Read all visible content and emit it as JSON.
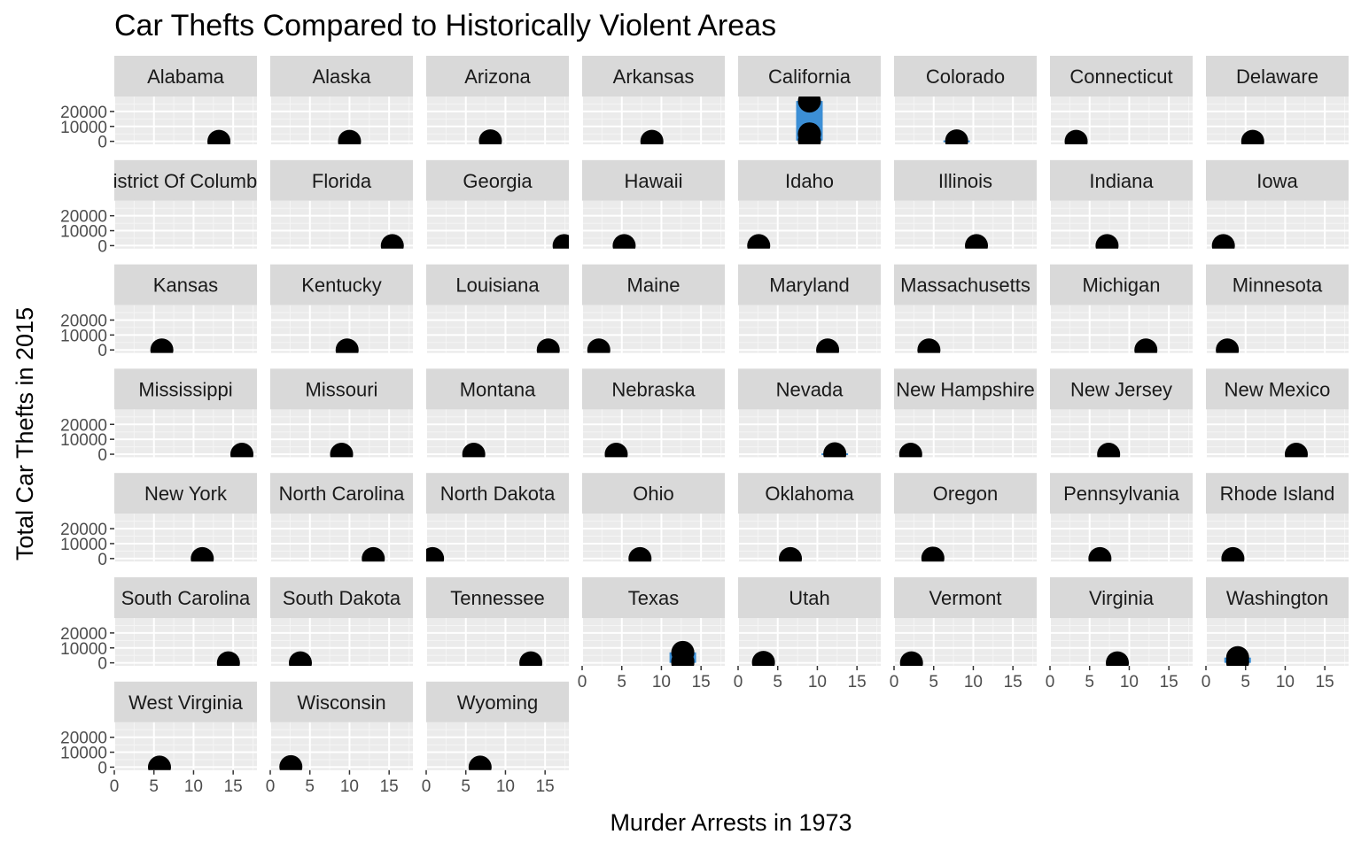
{
  "chart_data": {
    "type": "scatter",
    "title": "Car Thefts Compared to Historically Violent Areas",
    "xlabel": "Murder Arrests in 1973",
    "ylabel": "Total Car Thefts in 2015",
    "xlim": [
      0,
      18
    ],
    "ylim": [
      -2000,
      30000
    ],
    "x_ticks": [
      0,
      5,
      10,
      15
    ],
    "y_ticks": [
      0,
      10000,
      20000
    ],
    "grid": true,
    "legend": "none",
    "colors": {
      "point": "#000000",
      "range_band": "#3c8fd6",
      "panel": "#ebebeb",
      "strip": "#d9d9d9",
      "grid": "#ffffff"
    },
    "facets": [
      {
        "label": "Alabama",
        "x": 13.2,
        "y": [
          0
        ]
      },
      {
        "label": "Alaska",
        "x": 10.0,
        "y": [
          0
        ]
      },
      {
        "label": "Arizona",
        "x": 8.1,
        "y": [
          300
        ]
      },
      {
        "label": "Arkansas",
        "x": 8.8,
        "y": [
          0
        ]
      },
      {
        "label": "California",
        "x": 9.0,
        "y": [
          27000,
          5000,
          200
        ],
        "band": [
          500,
          27000
        ]
      },
      {
        "label": "Colorado",
        "x": 7.9,
        "y": [
          300
        ],
        "band": [
          0,
          600
        ]
      },
      {
        "label": "Connecticut",
        "x": 3.3,
        "y": [
          0
        ]
      },
      {
        "label": "Delaware",
        "x": 5.9,
        "y": [
          0
        ]
      },
      {
        "label": "District Of Columbia",
        "x": null,
        "y": []
      },
      {
        "label": "Florida",
        "x": 15.4,
        "y": [
          0
        ]
      },
      {
        "label": "Georgia",
        "x": 17.4,
        "y": [
          0
        ]
      },
      {
        "label": "Hawaii",
        "x": 5.3,
        "y": [
          0
        ]
      },
      {
        "label": "Idaho",
        "x": 2.6,
        "y": [
          0
        ]
      },
      {
        "label": "Illinois",
        "x": 10.4,
        "y": [
          0
        ]
      },
      {
        "label": "Indiana",
        "x": 7.2,
        "y": [
          0
        ]
      },
      {
        "label": "Iowa",
        "x": 2.2,
        "y": [
          0
        ]
      },
      {
        "label": "Kansas",
        "x": 6.0,
        "y": [
          0
        ]
      },
      {
        "label": "Kentucky",
        "x": 9.7,
        "y": [
          0
        ]
      },
      {
        "label": "Louisiana",
        "x": 15.4,
        "y": [
          0
        ]
      },
      {
        "label": "Maine",
        "x": 2.1,
        "y": [
          0
        ]
      },
      {
        "label": "Maryland",
        "x": 11.3,
        "y": [
          0
        ]
      },
      {
        "label": "Massachusetts",
        "x": 4.4,
        "y": [
          0
        ]
      },
      {
        "label": "Michigan",
        "x": 12.1,
        "y": [
          0
        ]
      },
      {
        "label": "Minnesota",
        "x": 2.7,
        "y": [
          0
        ]
      },
      {
        "label": "Mississippi",
        "x": 16.1,
        "y": [
          0
        ]
      },
      {
        "label": "Missouri",
        "x": 9.0,
        "y": [
          0
        ]
      },
      {
        "label": "Montana",
        "x": 6.0,
        "y": [
          0
        ]
      },
      {
        "label": "Nebraska",
        "x": 4.3,
        "y": [
          0
        ]
      },
      {
        "label": "Nevada",
        "x": 12.2,
        "y": [
          300
        ],
        "band": [
          0,
          600
        ]
      },
      {
        "label": "New Hampshire",
        "x": 2.1,
        "y": [
          0
        ]
      },
      {
        "label": "New Jersey",
        "x": 7.4,
        "y": [
          0
        ]
      },
      {
        "label": "New Mexico",
        "x": 11.4,
        "y": [
          0
        ]
      },
      {
        "label": "New York",
        "x": 11.1,
        "y": [
          0
        ]
      },
      {
        "label": "North Carolina",
        "x": 13.0,
        "y": [
          0
        ]
      },
      {
        "label": "North Dakota",
        "x": 0.8,
        "y": [
          0
        ]
      },
      {
        "label": "Ohio",
        "x": 7.3,
        "y": [
          0
        ]
      },
      {
        "label": "Oklahoma",
        "x": 6.6,
        "y": [
          0
        ]
      },
      {
        "label": "Oregon",
        "x": 4.9,
        "y": [
          300
        ]
      },
      {
        "label": "Pennsylvania",
        "x": 6.3,
        "y": [
          0
        ]
      },
      {
        "label": "Rhode Island",
        "x": 3.4,
        "y": [
          0
        ]
      },
      {
        "label": "South Carolina",
        "x": 14.4,
        "y": [
          0
        ]
      },
      {
        "label": "South Dakota",
        "x": 3.8,
        "y": [
          0
        ]
      },
      {
        "label": "Tennessee",
        "x": 13.2,
        "y": [
          0
        ]
      },
      {
        "label": "Texas",
        "x": 12.7,
        "y": [
          7000,
          1000,
          0
        ],
        "band": [
          0,
          7000
        ]
      },
      {
        "label": "Utah",
        "x": 3.2,
        "y": [
          300
        ]
      },
      {
        "label": "Vermont",
        "x": 2.2,
        "y": [
          0
        ]
      },
      {
        "label": "Virginia",
        "x": 8.5,
        "y": [
          0
        ]
      },
      {
        "label": "Washington",
        "x": 4.0,
        "y": [
          3500,
          500
        ],
        "band": [
          0,
          3500
        ]
      },
      {
        "label": "West Virginia",
        "x": 5.7,
        "y": [
          0
        ]
      },
      {
        "label": "Wisconsin",
        "x": 2.6,
        "y": [
          300
        ]
      },
      {
        "label": "Wyoming",
        "x": 6.8,
        "y": [
          0
        ]
      }
    ]
  }
}
